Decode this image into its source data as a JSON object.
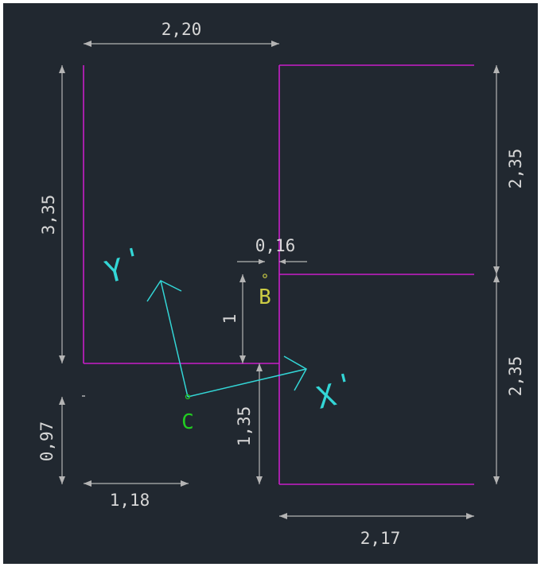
{
  "colors": {
    "background": "#212830",
    "outline": "#c81ec8",
    "dimension": "#b4b4b4",
    "dimension_text": "#d7d7d7",
    "axis": "#33d6d6",
    "point_c": "#22cc22",
    "point_b": "#cccc44"
  },
  "dimensions": {
    "top_width": "2,20",
    "left_height": "3,35",
    "right_upper_height": "2,35",
    "right_lower_height": "2,35",
    "gap_width": "0,16",
    "b_height": "1",
    "c_height": "1,35",
    "bottom_left_height": "0,97",
    "bottom_left_width": "1,18",
    "bottom_right_width": "2,17"
  },
  "labels": {
    "point_c": "C",
    "point_b": "B",
    "axis_x": "X",
    "axis_y": "Y",
    "prime": "'"
  }
}
